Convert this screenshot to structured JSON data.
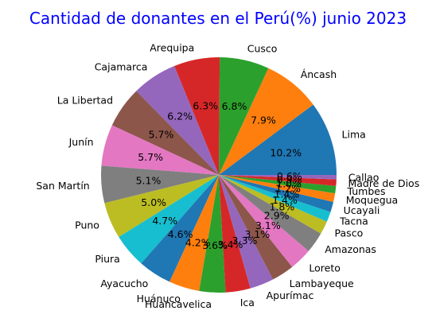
{
  "chart_data": {
    "type": "pie",
    "title": "Cantidad de donantes en el Perú(%) junio 2023",
    "title_color": "#0000ff",
    "start_angle_deg": 0,
    "direction": "counterclockwise",
    "legend": "none",
    "slices": [
      {
        "label": "Lima",
        "value": 10.2,
        "pct_label": "10.2%",
        "color": "#1f77b4"
      },
      {
        "label": "Áncash",
        "value": 7.9,
        "pct_label": "7.9%",
        "color": "#ff7f0e"
      },
      {
        "label": "Cusco",
        "value": 6.8,
        "pct_label": "6.8%",
        "color": "#2ca02c"
      },
      {
        "label": "Arequipa",
        "value": 6.3,
        "pct_label": "6.3%",
        "color": "#d62728"
      },
      {
        "label": "Cajamarca",
        "value": 6.2,
        "pct_label": "6.2%",
        "color": "#9467bd"
      },
      {
        "label": "La Libertad",
        "value": 5.7,
        "pct_label": "5.7%",
        "color": "#8c564b"
      },
      {
        "label": "Junín",
        "value": 5.7,
        "pct_label": "5.7%",
        "color": "#e377c2"
      },
      {
        "label": "San Martín",
        "value": 5.1,
        "pct_label": "5.1%",
        "color": "#7f7f7f"
      },
      {
        "label": "Puno",
        "value": 5.0,
        "pct_label": "5.0%",
        "color": "#bcbd22"
      },
      {
        "label": "Piura",
        "value": 4.7,
        "pct_label": "4.7%",
        "color": "#17becf"
      },
      {
        "label": "Ayacucho",
        "value": 4.6,
        "pct_label": "4.6%",
        "color": "#1f77b4"
      },
      {
        "label": "Huánuco",
        "value": 4.2,
        "pct_label": "4.2%",
        "color": "#ff7f0e"
      },
      {
        "label": "Huancavelica",
        "value": 3.6,
        "pct_label": "3.6%",
        "color": "#2ca02c"
      },
      {
        "label": "Ica",
        "value": 3.4,
        "pct_label": "3.4%",
        "color": "#d62728"
      },
      {
        "label": "Apurímac",
        "value": 3.3,
        "pct_label": "3.3%",
        "color": "#9467bd"
      },
      {
        "label": "Lambayeque",
        "value": 3.1,
        "pct_label": "3.1%",
        "color": "#8c564b"
      },
      {
        "label": "Loreto",
        "value": 3.1,
        "pct_label": "3.1%",
        "color": "#e377c2"
      },
      {
        "label": "Amazonas",
        "value": 2.9,
        "pct_label": "2.9%",
        "color": "#7f7f7f"
      },
      {
        "label": "Pasco",
        "value": 1.8,
        "pct_label": "1.8%",
        "color": "#bcbd22"
      },
      {
        "label": "Tacna",
        "value": 1.4,
        "pct_label": "1.4%",
        "color": "#17becf"
      },
      {
        "label": "Ucayali",
        "value": 1.4,
        "pct_label": "1.4%",
        "color": "#1f77b4"
      },
      {
        "label": "Moquegua",
        "value": 1.2,
        "pct_label": "1.2%",
        "color": "#ff7f0e"
      },
      {
        "label": "Tumbes",
        "value": 1.0,
        "pct_label": "1.0%",
        "color": "#2ca02c"
      },
      {
        "label": "Madre de Dios",
        "value": 0.9,
        "pct_label": "0.9%",
        "color": "#d62728"
      },
      {
        "label": "Callao",
        "value": 0.6,
        "pct_label": "0.6%",
        "color": "#9467bd"
      }
    ]
  }
}
